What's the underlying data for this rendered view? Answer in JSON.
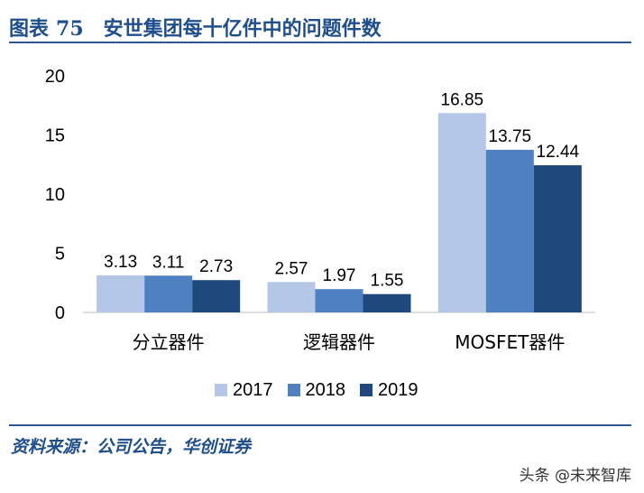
{
  "header": {
    "figure_label": "图表",
    "figure_number": "75",
    "title": "安世集团每十亿件中的问题件数"
  },
  "chart_data": {
    "type": "bar",
    "categories": [
      "分立器件",
      "逻辑器件",
      "MOSFET器件"
    ],
    "series": [
      {
        "name": "2017",
        "values": [
          3.13,
          2.57,
          16.85
        ],
        "color": "#b4c7e7"
      },
      {
        "name": "2018",
        "values": [
          3.11,
          1.97,
          13.75
        ],
        "color": "#4f81c2"
      },
      {
        "name": "2019",
        "values": [
          2.73,
          1.55,
          12.44
        ],
        "color": "#1f497d"
      }
    ],
    "value_labels": [
      [
        "3.13",
        "2.57",
        "16.85"
      ],
      [
        "3.11",
        "1.97",
        "13.75"
      ],
      [
        "2.73",
        "1.55",
        "12.44"
      ]
    ],
    "ylim": [
      0,
      20
    ],
    "yticks": [
      0,
      5,
      10,
      15,
      20
    ],
    "ytick_labels": [
      "0",
      "5",
      "10",
      "15",
      "20"
    ],
    "grid": false,
    "legend_position": "bottom"
  },
  "footer": {
    "source": "资料来源：公司公告，华创证券",
    "watermark": "头条 @未来智库"
  }
}
